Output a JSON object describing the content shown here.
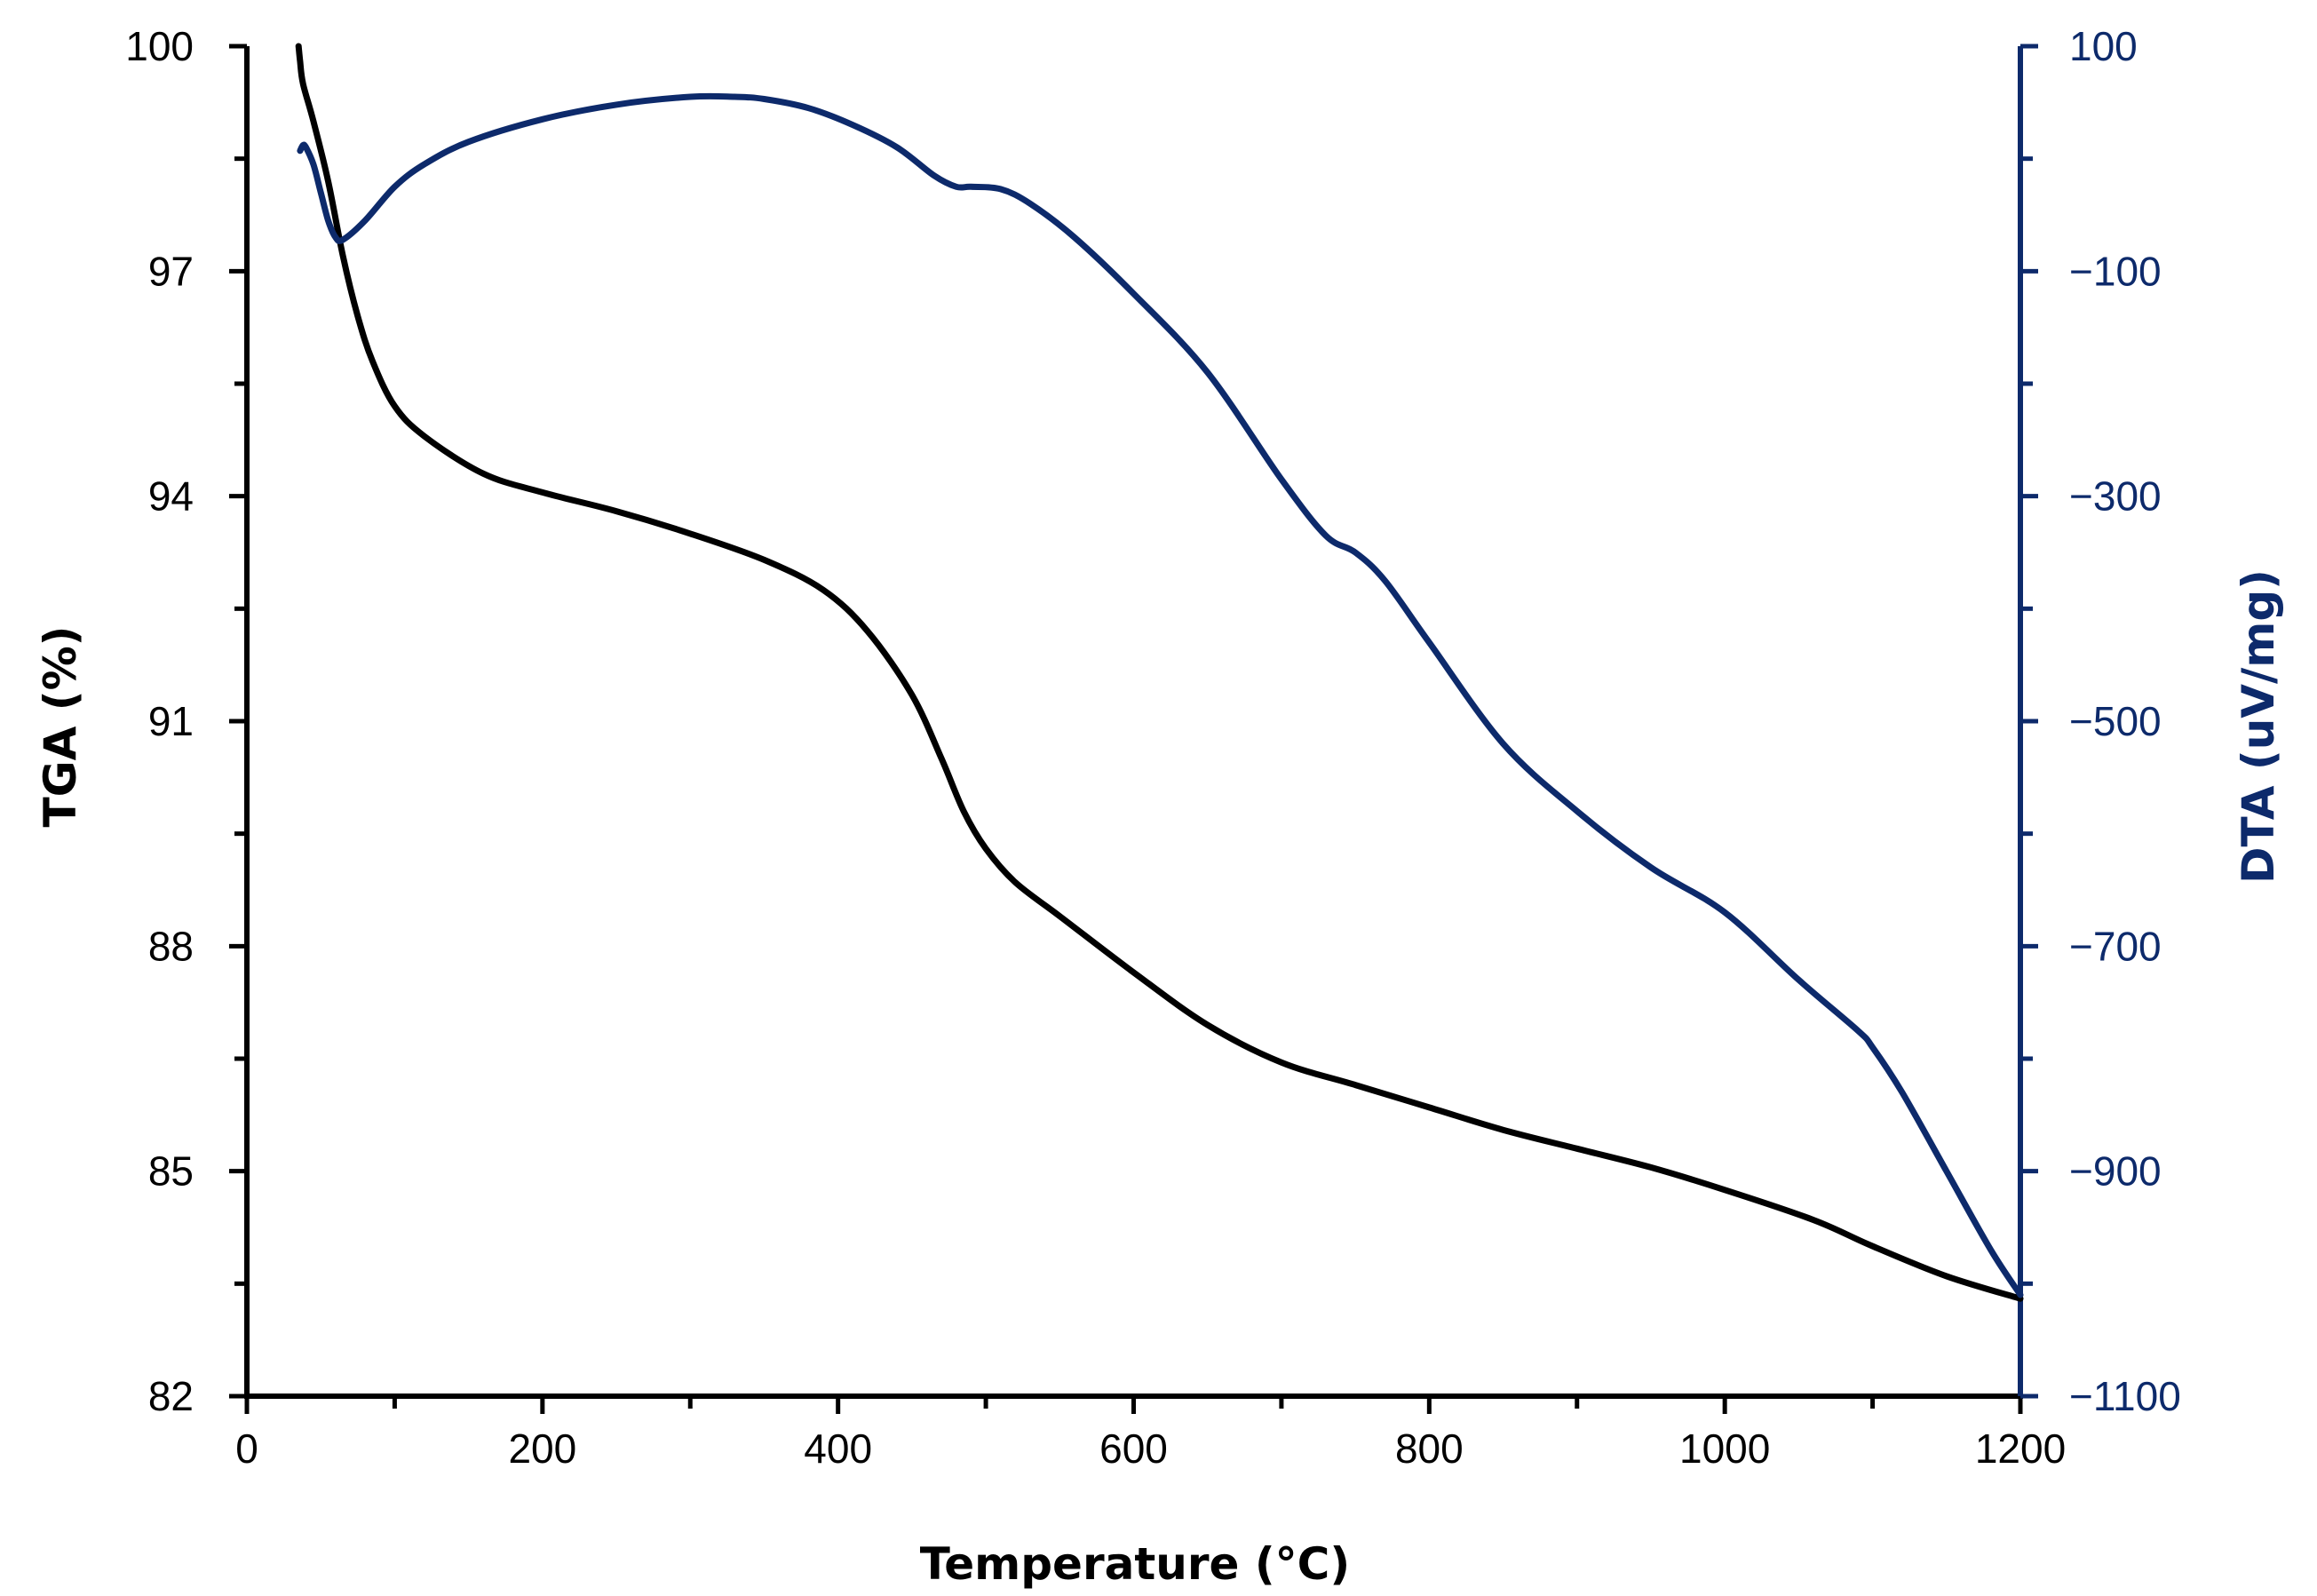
{
  "chart_data": {
    "type": "line",
    "title": "",
    "xlabel": "Temperature (°C)",
    "ylabel_left": "TGA (%)",
    "ylabel_right": "DTA (uV/mg)",
    "xlim": [
      0,
      1200
    ],
    "ylim_left": [
      82,
      100
    ],
    "ylim_right": [
      -1100,
      100
    ],
    "x_ticks": [
      0,
      200,
      400,
      600,
      800,
      1000,
      1200
    ],
    "x_tick_labels": [
      "0",
      "200",
      "400",
      "600",
      "800",
      "1000",
      "1200"
    ],
    "y_left_ticks": [
      82,
      85,
      88,
      91,
      94,
      97,
      100
    ],
    "y_left_tick_labels": [
      "82",
      "85",
      "88",
      "91",
      "94",
      "97",
      "100"
    ],
    "y_right_ticks": [
      -1100,
      -900,
      -700,
      -500,
      -300,
      -100,
      100
    ],
    "y_right_tick_labels": [
      "−1100",
      "−900",
      "−700",
      "−500",
      "−300",
      "−100",
      "100"
    ],
    "grid": false,
    "colors": {
      "tga": "#000000",
      "dta": "#0d2a6b",
      "right_axis": "#0d2a6b"
    },
    "series": [
      {
        "name": "TGA",
        "axis": "left",
        "x": [
          35,
          36,
          38,
          45,
          55,
          65,
          75,
          85,
          100,
          120,
          160,
          200,
          250,
          300,
          350,
          390,
          420,
          450,
          470,
          485,
          500,
          520,
          550,
          600,
          650,
          700,
          750,
          800,
          850,
          900,
          950,
          1000,
          1060,
          1100,
          1150,
          1200
        ],
        "values": [
          100.0,
          99.8,
          99.5,
          99.0,
          98.2,
          97.2,
          96.4,
          95.8,
          95.2,
          94.8,
          94.3,
          94.05,
          93.8,
          93.5,
          93.15,
          92.75,
          92.2,
          91.35,
          90.5,
          89.8,
          89.3,
          88.85,
          88.4,
          87.65,
          86.95,
          86.45,
          86.15,
          85.85,
          85.55,
          85.3,
          85.05,
          84.75,
          84.35,
          84.0,
          83.6,
          83.3
        ]
      },
      {
        "name": "DTA",
        "axis": "right",
        "x": [
          36,
          38,
          40,
          45,
          50,
          55,
          60,
          65,
          80,
          100,
          120,
          150,
          200,
          250,
          300,
          330,
          350,
          380,
          410,
          440,
          465,
          480,
          490,
          510,
          530,
          560,
          600,
          650,
          700,
          730,
          750,
          770,
          800,
          850,
          900,
          950,
          1000,
          1050,
          1090,
          1100,
          1120,
          1150,
          1180,
          1200
        ],
        "values": [
          7,
          12,
          10,
          -5,
          -30,
          -55,
          -70,
          -72,
          -55,
          -25,
          -5,
          15,
          35,
          48,
          55,
          55,
          53,
          45,
          30,
          10,
          -15,
          -25,
          -25,
          -27,
          -40,
          -70,
          -120,
          -190,
          -285,
          -335,
          -350,
          -375,
          -430,
          -520,
          -580,
          -630,
          -670,
          -730,
          -775,
          -790,
          -830,
          -900,
          -970,
          -1010
        ]
      }
    ]
  }
}
